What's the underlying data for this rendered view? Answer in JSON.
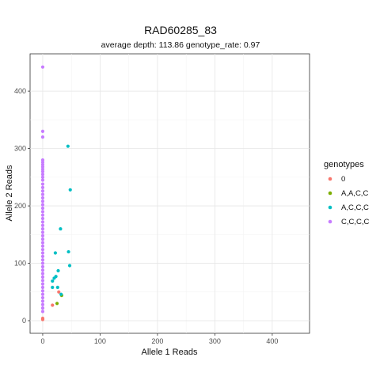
{
  "chart_data": {
    "type": "scatter",
    "title": "RAD60285_83",
    "subtitle": "average depth:  113.86  genotype_rate:  0.97",
    "xlabel": "Allele 1 Reads",
    "ylabel": "Allele 2 Reads",
    "xlim": [
      -22,
      465
    ],
    "ylim": [
      -22,
      465
    ],
    "xticks": [
      0,
      100,
      200,
      300,
      400
    ],
    "yticks": [
      0,
      100,
      200,
      300,
      400
    ],
    "grid": true,
    "legend": {
      "title": "genotypes",
      "position": "right",
      "entries": [
        "0",
        "A,A,C,C",
        "A,C,C,C",
        "C,C,C,C"
      ]
    },
    "series": [
      {
        "name": "0",
        "color": "#F8766D",
        "points": [
          [
            0,
            2
          ],
          [
            0,
            4
          ],
          [
            17,
            27
          ],
          [
            28,
            50
          ]
        ]
      },
      {
        "name": "A,A,C,C",
        "color": "#7CAE00",
        "points": [
          [
            25,
            30
          ],
          [
            33,
            44
          ]
        ]
      },
      {
        "name": "A,C,C,C",
        "color": "#00BFC4",
        "points": [
          [
            44,
            304
          ],
          [
            48,
            228
          ],
          [
            31,
            160
          ],
          [
            45,
            120
          ],
          [
            22,
            118
          ],
          [
            47,
            96
          ],
          [
            27,
            87
          ],
          [
            23,
            77
          ],
          [
            20,
            74
          ],
          [
            17,
            69
          ],
          [
            17,
            58
          ],
          [
            26,
            58
          ],
          [
            32,
            46
          ]
        ]
      },
      {
        "name": "C,C,C,C",
        "color": "#C77CFF",
        "points": [
          [
            0,
            442
          ],
          [
            0,
            330
          ],
          [
            0,
            320
          ],
          [
            0,
            280
          ],
          [
            0,
            276
          ],
          [
            0,
            272
          ],
          [
            0,
            268
          ],
          [
            0,
            264
          ],
          [
            0,
            260
          ],
          [
            0,
            255
          ],
          [
            0,
            250
          ],
          [
            0,
            245
          ],
          [
            0,
            238
          ],
          [
            0,
            232
          ],
          [
            0,
            226
          ],
          [
            0,
            220
          ],
          [
            0,
            214
          ],
          [
            0,
            208
          ],
          [
            0,
            202
          ],
          [
            0,
            196
          ],
          [
            0,
            190
          ],
          [
            0,
            184
          ],
          [
            0,
            178
          ],
          [
            0,
            172
          ],
          [
            0,
            166
          ],
          [
            0,
            160
          ],
          [
            0,
            154
          ],
          [
            0,
            148
          ],
          [
            0,
            142
          ],
          [
            0,
            136
          ],
          [
            0,
            130
          ],
          [
            0,
            124
          ],
          [
            0,
            118
          ],
          [
            0,
            112
          ],
          [
            0,
            106
          ],
          [
            0,
            100
          ],
          [
            0,
            94
          ],
          [
            0,
            88
          ],
          [
            0,
            82
          ],
          [
            0,
            76
          ],
          [
            0,
            70
          ],
          [
            0,
            64
          ],
          [
            0,
            58
          ],
          [
            0,
            52
          ],
          [
            0,
            46
          ],
          [
            0,
            40
          ],
          [
            0,
            34
          ],
          [
            0,
            28
          ],
          [
            0,
            22
          ],
          [
            0,
            16
          ]
        ]
      }
    ]
  }
}
